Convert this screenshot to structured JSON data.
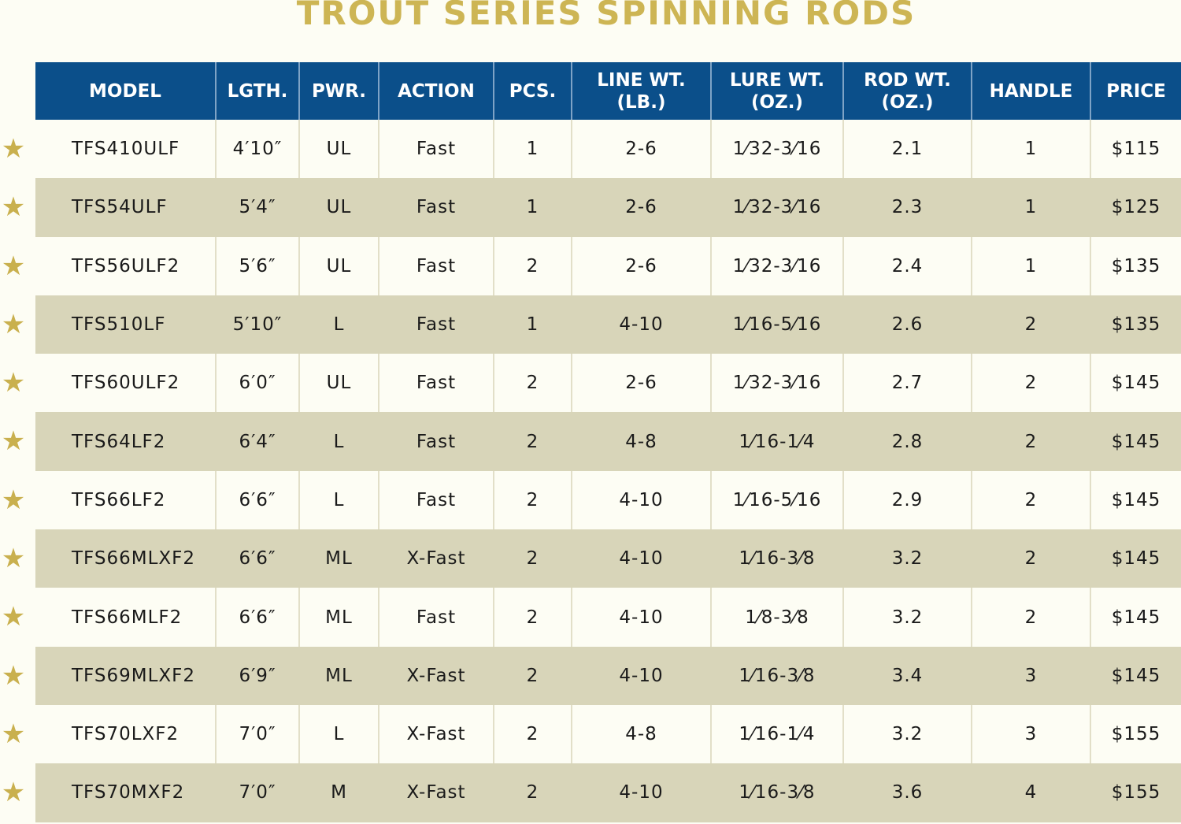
{
  "title": "TROUT SERIES SPINNING RODS",
  "colors": {
    "header": "#0b4f8a",
    "title": "#cdb554",
    "star": "#c9b04e",
    "stripe": "#d8d5b9",
    "background": "#fdfdf4"
  },
  "row_icon": "star-icon",
  "headers": [
    [
      "MODEL"
    ],
    [
      "LGTH."
    ],
    [
      "PWR."
    ],
    [
      "ACTION"
    ],
    [
      "PCS."
    ],
    [
      "LINE WT.",
      "(LB.)"
    ],
    [
      "LURE WT.",
      "(OZ.)"
    ],
    [
      "ROD WT.",
      "(OZ.)"
    ],
    [
      "HANDLE"
    ],
    [
      "PRICE"
    ]
  ],
  "rows": [
    [
      "TFS410ULF",
      "4′10″",
      "UL",
      "Fast",
      "1",
      "2-6",
      "1⁄32-3⁄16",
      "2.1",
      "1",
      "$115"
    ],
    [
      "TFS54ULF",
      "5′4″",
      "UL",
      "Fast",
      "1",
      "2-6",
      "1⁄32-3⁄16",
      "2.3",
      "1",
      "$125"
    ],
    [
      "TFS56ULF2",
      "5′6″",
      "UL",
      "Fast",
      "2",
      "2-6",
      "1⁄32-3⁄16",
      "2.4",
      "1",
      "$135"
    ],
    [
      "TFS510LF",
      "5′10″",
      "L",
      "Fast",
      "1",
      "4-10",
      "1⁄16-5⁄16",
      "2.6",
      "2",
      "$135"
    ],
    [
      "TFS60ULF2",
      "6′0″",
      "UL",
      "Fast",
      "2",
      "2-6",
      "1⁄32-3⁄16",
      "2.7",
      "2",
      "$145"
    ],
    [
      "TFS64LF2",
      "6′4″",
      "L",
      "Fast",
      "2",
      "4-8",
      "1⁄16-1⁄4",
      "2.8",
      "2",
      "$145"
    ],
    [
      "TFS66LF2",
      "6′6″",
      "L",
      "Fast",
      "2",
      "4-10",
      "1⁄16-5⁄16",
      "2.9",
      "2",
      "$145"
    ],
    [
      "TFS66MLXF2",
      "6′6″",
      "ML",
      "X-Fast",
      "2",
      "4-10",
      "1⁄16-3⁄8",
      "3.2",
      "2",
      "$145"
    ],
    [
      "TFS66MLF2",
      "6′6″",
      "ML",
      "Fast",
      "2",
      "4-10",
      "1⁄8-3⁄8",
      "3.2",
      "2",
      "$145"
    ],
    [
      "TFS69MLXF2",
      "6′9″",
      "ML",
      "X-Fast",
      "2",
      "4-10",
      "1⁄16-3⁄8",
      "3.4",
      "3",
      "$145"
    ],
    [
      "TFS70LXF2",
      "7′0″",
      "L",
      "X-Fast",
      "2",
      "4-8",
      "1⁄16-1⁄4",
      "3.2",
      "3",
      "$155"
    ],
    [
      "TFS70MXF2",
      "7′0″",
      "M",
      "X-Fast",
      "2",
      "4-10",
      "1⁄16-3⁄8",
      "3.6",
      "4",
      "$155"
    ]
  ]
}
